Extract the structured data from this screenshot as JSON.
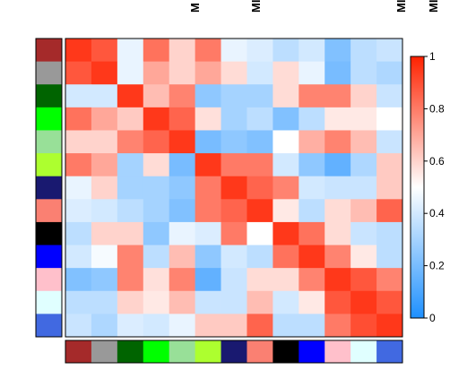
{
  "chart_data": {
    "type": "heatmap",
    "title": "",
    "xlabel": "",
    "ylabel": "",
    "visible_column_labels": [
      "M",
      "MI",
      "MI",
      "MI"
    ],
    "row_annotation_colors": [
      "#a52a2a",
      "#999999",
      "#006400",
      "#00ff00",
      "#98e098",
      "#adff2f",
      "#191970",
      "#fa8072",
      "#000000",
      "#0000ff",
      "#ffc0cb",
      "#e0ffff",
      "#4169e1"
    ],
    "column_annotation_colors": [
      "#a52a2a",
      "#999999",
      "#006400",
      "#00ff00",
      "#98e098",
      "#adff2f",
      "#191970",
      "#fa8072",
      "#000000",
      "#0000ff",
      "#ffc0cb",
      "#e0ffff",
      "#4169e1"
    ],
    "matrix": [
      [
        0.95,
        0.88,
        0.45,
        0.82,
        0.6,
        0.8,
        0.45,
        0.42,
        0.35,
        0.4,
        0.22,
        0.35,
        0.38
      ],
      [
        0.88,
        0.95,
        0.45,
        0.7,
        0.6,
        0.7,
        0.58,
        0.4,
        0.58,
        0.45,
        0.2,
        0.35,
        0.32
      ],
      [
        0.4,
        0.4,
        0.95,
        0.65,
        0.78,
        0.25,
        0.3,
        0.3,
        0.58,
        0.78,
        0.78,
        0.6,
        0.38
      ],
      [
        0.82,
        0.7,
        0.62,
        0.95,
        0.85,
        0.57,
        0.3,
        0.35,
        0.22,
        0.35,
        0.55,
        0.55,
        0.5
      ],
      [
        0.6,
        0.6,
        0.78,
        0.85,
        0.95,
        0.2,
        0.25,
        0.22,
        0.5,
        0.68,
        0.78,
        0.65,
        0.38
      ],
      [
        0.8,
        0.7,
        0.3,
        0.58,
        0.2,
        0.95,
        0.8,
        0.8,
        0.4,
        0.25,
        0.15,
        0.32,
        0.62
      ],
      [
        0.45,
        0.6,
        0.3,
        0.3,
        0.25,
        0.8,
        0.95,
        0.85,
        0.78,
        0.4,
        0.38,
        0.38,
        0.62
      ],
      [
        0.42,
        0.4,
        0.35,
        0.3,
        0.22,
        0.8,
        0.85,
        0.95,
        0.55,
        0.35,
        0.58,
        0.65,
        0.85
      ],
      [
        0.35,
        0.6,
        0.6,
        0.25,
        0.45,
        0.42,
        0.8,
        0.5,
        0.95,
        0.82,
        0.58,
        0.38,
        0.35
      ],
      [
        0.4,
        0.48,
        0.78,
        0.35,
        0.65,
        0.25,
        0.4,
        0.35,
        0.82,
        0.95,
        0.78,
        0.55,
        0.35
      ],
      [
        0.22,
        0.25,
        0.78,
        0.57,
        0.78,
        0.15,
        0.38,
        0.58,
        0.58,
        0.78,
        0.95,
        0.88,
        0.78
      ],
      [
        0.35,
        0.35,
        0.6,
        0.55,
        0.65,
        0.38,
        0.38,
        0.65,
        0.4,
        0.55,
        0.88,
        0.95,
        0.88
      ],
      [
        0.38,
        0.32,
        0.42,
        0.4,
        0.45,
        0.62,
        0.62,
        0.85,
        0.35,
        0.35,
        0.8,
        0.9,
        0.95
      ]
    ],
    "colorbar": {
      "range": [
        0,
        1
      ],
      "ticks": [
        0,
        0.2,
        0.4,
        0.6,
        0.8,
        1
      ],
      "tick_labels": [
        "0",
        "0.2",
        "0.4",
        "0.6",
        "0.8",
        "1"
      ],
      "low_color": "#1e90ff",
      "mid_color": "#ffffff",
      "high_color": "#ff2200",
      "mid_value": 0.5
    }
  }
}
